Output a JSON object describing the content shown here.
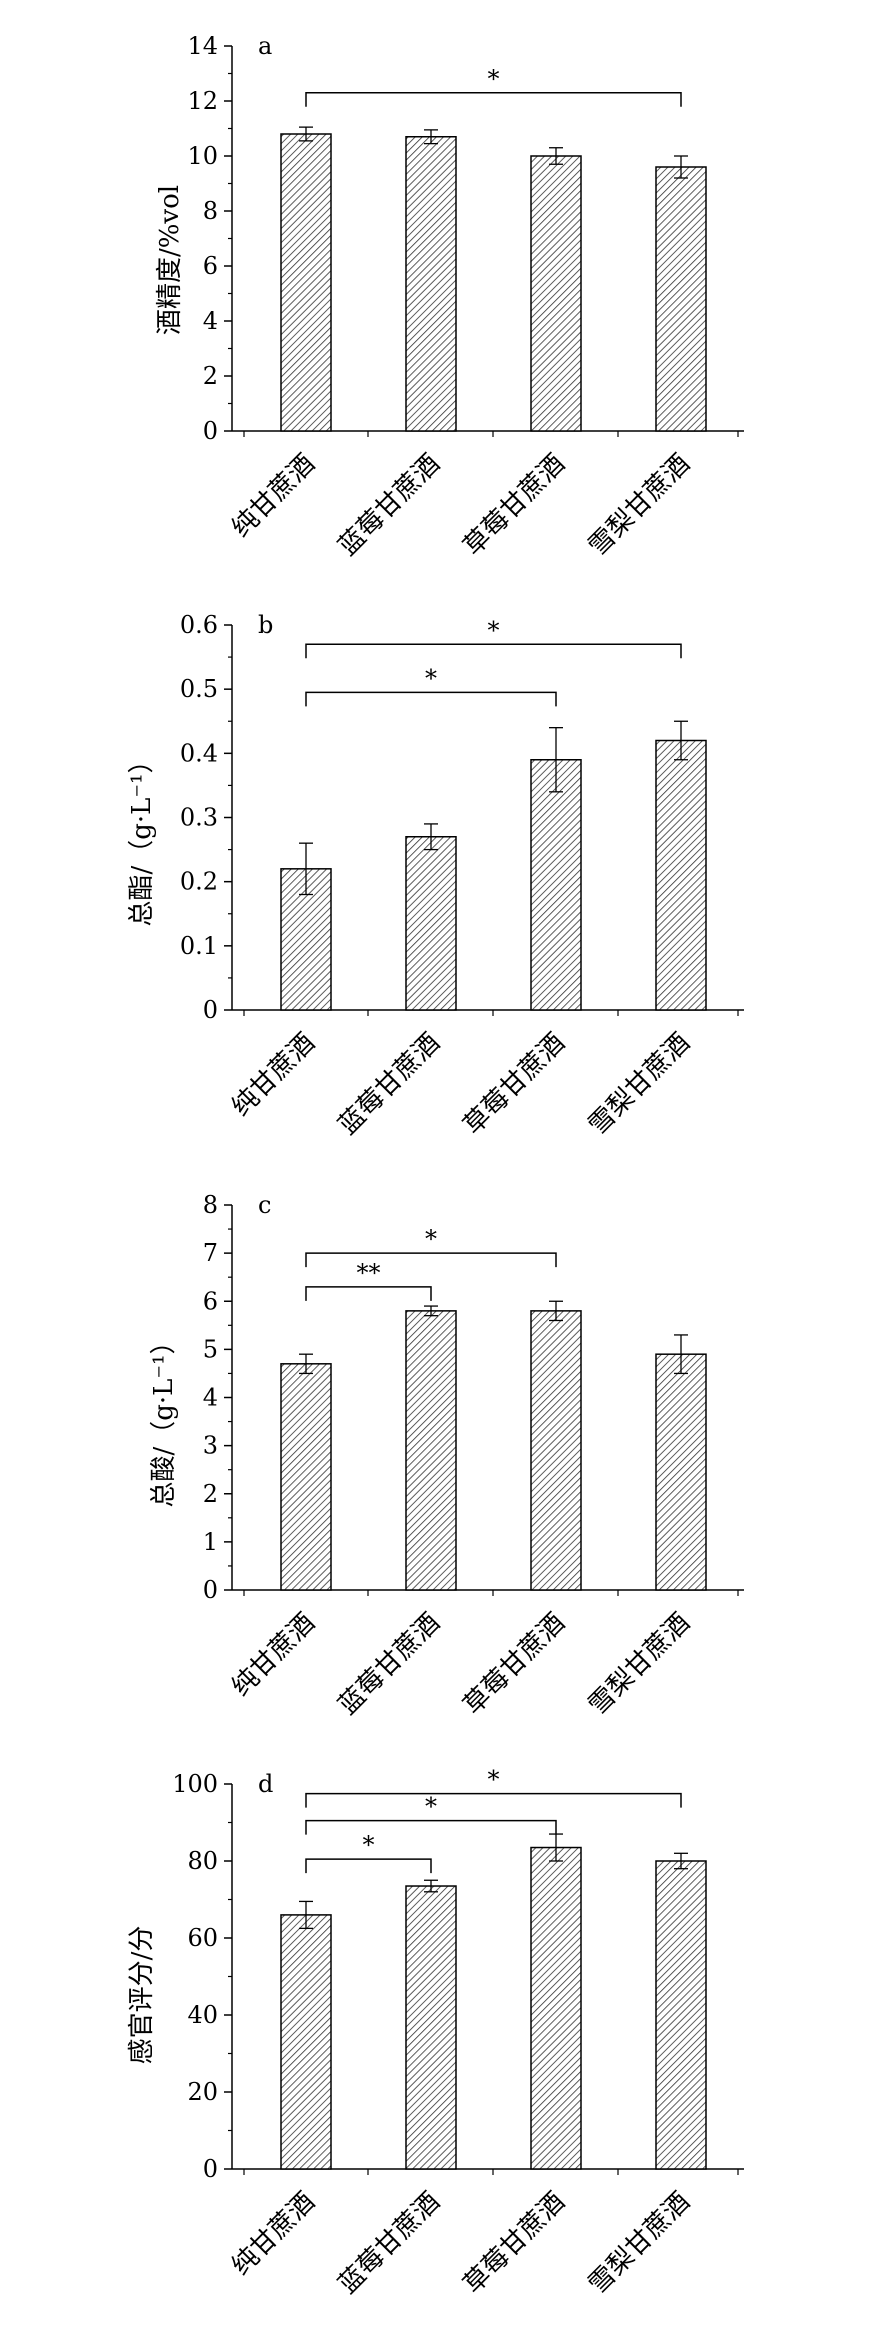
{
  "chart_data": [
    {
      "panel_label": "a",
      "type": "bar",
      "categories": [
        "纯甘蔗酒",
        "蓝莓甘蔗酒",
        "草莓甘蔗酒",
        "雪梨甘蔗酒"
      ],
      "values": [
        10.8,
        10.7,
        10.0,
        9.6
      ],
      "errors": [
        0.25,
        0.25,
        0.3,
        0.4
      ],
      "ylabel": "酒精度/%vol",
      "ylim": [
        0,
        14
      ],
      "yticks": [
        0,
        2,
        4,
        6,
        8,
        10,
        12,
        14
      ],
      "ytick_labels": [
        "0",
        "2",
        "4",
        "6",
        "8",
        "10",
        "12",
        "14"
      ],
      "significance": [
        {
          "from": 0,
          "to": 3,
          "y": 12.3,
          "label": "*"
        }
      ]
    },
    {
      "panel_label": "b",
      "type": "bar",
      "categories": [
        "纯甘蔗酒",
        "蓝莓甘蔗酒",
        "草莓甘蔗酒",
        "雪梨甘蔗酒"
      ],
      "values": [
        0.22,
        0.27,
        0.39,
        0.42
      ],
      "errors": [
        0.04,
        0.02,
        0.05,
        0.03
      ],
      "ylabel": "总酯/（g·L⁻¹）",
      "ylim": [
        0,
        0.6
      ],
      "yticks": [
        0,
        0.1,
        0.2,
        0.3,
        0.4,
        0.5,
        0.6
      ],
      "ytick_labels": [
        "0",
        "0.1",
        "0.2",
        "0.3",
        "0.4",
        "0.5",
        "0.6"
      ],
      "significance": [
        {
          "from": 0,
          "to": 3,
          "y": 0.57,
          "label": "*"
        },
        {
          "from": 0,
          "to": 2,
          "y": 0.495,
          "label": "*"
        }
      ]
    },
    {
      "panel_label": "c",
      "type": "bar",
      "categories": [
        "纯甘蔗酒",
        "蓝莓甘蔗酒",
        "草莓甘蔗酒",
        "雪梨甘蔗酒"
      ],
      "values": [
        4.7,
        5.8,
        5.8,
        4.9
      ],
      "errors": [
        0.2,
        0.1,
        0.2,
        0.4
      ],
      "ylabel": "总酸/（g·L⁻¹）",
      "ylim": [
        0,
        8
      ],
      "yticks": [
        0,
        1,
        2,
        3,
        4,
        5,
        6,
        7,
        8
      ],
      "ytick_labels": [
        "0",
        "1",
        "2",
        "3",
        "4",
        "5",
        "6",
        "7",
        "8"
      ],
      "significance": [
        {
          "from": 0,
          "to": 2,
          "y": 7.0,
          "label": "*"
        },
        {
          "from": 0,
          "to": 1,
          "y": 6.3,
          "label": "**"
        }
      ]
    },
    {
      "panel_label": "d",
      "type": "bar",
      "categories": [
        "纯甘蔗酒",
        "蓝莓甘蔗酒",
        "草莓甘蔗酒",
        "雪梨甘蔗酒"
      ],
      "values": [
        66,
        73.5,
        83.5,
        80
      ],
      "errors": [
        3.5,
        1.5,
        3.5,
        2
      ],
      "ylabel": "感官评分/分",
      "ylim": [
        0,
        100
      ],
      "yticks": [
        0,
        20,
        40,
        60,
        80,
        100
      ],
      "ytick_labels": [
        "0",
        "20",
        "40",
        "60",
        "80",
        "100"
      ],
      "significance": [
        {
          "from": 0,
          "to": 3,
          "y": 97.5,
          "label": "*"
        },
        {
          "from": 0,
          "to": 2,
          "y": 90.5,
          "label": "*"
        },
        {
          "from": 0,
          "to": 1,
          "y": 80.5,
          "label": "*"
        }
      ]
    }
  ]
}
